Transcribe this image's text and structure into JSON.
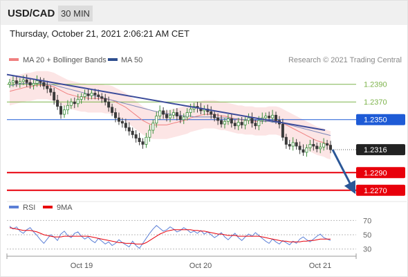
{
  "header": {
    "symbol": "USD/CAD",
    "timeframe": "30 MIN",
    "timestamp": "Thursday, October 21, 2021 2:06:21 AM CET"
  },
  "legend": {
    "items": [
      {
        "label": "MA 20 + Bollinger Bands",
        "color": "#f08080"
      },
      {
        "label": "MA 50",
        "color": "#2f4f8f"
      }
    ],
    "credit": "Research © 2021 Trading Central"
  },
  "colors": {
    "support_red": "#e8000b",
    "pivot_blue": "#1e5bd6",
    "resistance_green": "#7db34b",
    "trendline": "#3b4b9a",
    "arrow": "#2b5797",
    "bollinger_fill": "#fbdcdc",
    "candle_up": "#3a8f3a",
    "candle_down": "#3a3a3a",
    "rsi": "#5b7fd6",
    "rsi_ma": "#e8000b"
  },
  "chart_data": [
    {
      "type": "candlestick",
      "title": "USD/CAD",
      "x_labels": [
        "Oct 19",
        "Oct 20",
        "Oct 21"
      ],
      "ylim": [
        1.2262,
        1.2407
      ],
      "levels": [
        {
          "value": 1.239,
          "label": "1.2390",
          "kind": "resistance"
        },
        {
          "value": 1.237,
          "label": "1.2370",
          "kind": "resistance"
        },
        {
          "value": 1.235,
          "label": "1.2350",
          "kind": "pivot"
        },
        {
          "value": 1.2316,
          "label": "1.2316",
          "kind": "last"
        },
        {
          "value": 1.229,
          "label": "1.2290",
          "kind": "support"
        },
        {
          "value": 1.227,
          "label": "1.2270",
          "kind": "support"
        }
      ],
      "close": [
        1.2392,
        1.2394,
        1.2391,
        1.2393,
        1.2395,
        1.2392,
        1.2389,
        1.2391,
        1.2394,
        1.2392,
        1.2388,
        1.2385,
        1.2381,
        1.2372,
        1.2365,
        1.2356,
        1.2361,
        1.2366,
        1.237,
        1.2368,
        1.2373,
        1.2376,
        1.2379,
        1.2377,
        1.238,
        1.2378,
        1.2376,
        1.2374,
        1.237,
        1.2364,
        1.2358,
        1.2352,
        1.2348,
        1.2346,
        1.2341,
        1.2337,
        1.2333,
        1.2329,
        1.2325,
        1.2322,
        1.233,
        1.2338,
        1.2346,
        1.2354,
        1.236,
        1.2356,
        1.2352,
        1.2355,
        1.2358,
        1.2354,
        1.235,
        1.2353,
        1.2358,
        1.2362,
        1.2365,
        1.2363,
        1.236,
        1.2362,
        1.2359,
        1.2356,
        1.2352,
        1.2349,
        1.2345,
        1.2348,
        1.2351,
        1.2346,
        1.2343,
        1.2347,
        1.2344,
        1.2349,
        1.2352,
        1.2346,
        1.2343,
        1.2349,
        1.2352,
        1.2354,
        1.2352,
        1.2355,
        1.2349,
        1.2345,
        1.233,
        1.2322,
        1.232,
        1.2324,
        1.232,
        1.2316,
        1.2313,
        1.2318,
        1.2322,
        1.232,
        1.2317,
        1.2319,
        1.2323,
        1.2321,
        1.2316
      ],
      "ma20": [
        1.2382,
        1.2383,
        1.2384,
        1.2385,
        1.2386,
        1.2387,
        1.2387,
        1.2388,
        1.2389,
        1.2389,
        1.2389,
        1.2389,
        1.2388,
        1.2387,
        1.2385,
        1.2383,
        1.2381,
        1.2379,
        1.2378,
        1.2377,
        1.2376,
        1.2375,
        1.2375,
        1.2374,
        1.2374,
        1.2374,
        1.2374,
        1.2374,
        1.2373,
        1.2373,
        1.2372,
        1.237,
        1.2368,
        1.2366,
        1.2364,
        1.2361,
        1.2358,
        1.2355,
        1.2352,
        1.2349,
        1.2347,
        1.2345,
        1.2344,
        1.2344,
        1.2344,
        1.2344,
        1.2344,
        1.2345,
        1.2346,
        1.2347,
        1.2348,
        1.2349,
        1.235,
        1.2352,
        1.2353,
        1.2354,
        1.2355,
        1.2356,
        1.2356,
        1.2356,
        1.2356,
        1.2355,
        1.2354,
        1.2354,
        1.2353,
        1.2352,
        1.2351,
        1.235,
        1.235,
        1.2349,
        1.2349,
        1.2349,
        1.2348,
        1.2348,
        1.2348,
        1.2348,
        1.2349,
        1.2349,
        1.2349,
        1.2348,
        1.2346,
        1.2344,
        1.2342,
        1.234,
        1.2338,
        1.2336,
        1.2334,
        1.2332,
        1.233,
        1.2328,
        1.2326,
        1.2325,
        1.2324,
        1.2322,
        1.2321
      ],
      "ma50": [
        1.2388,
        1.2389,
        1.239,
        1.239,
        1.2391,
        1.2391,
        1.2391,
        1.2391,
        1.2391,
        1.2391,
        1.2391,
        1.239,
        1.239,
        1.2389,
        1.2388,
        1.2387,
        1.2386,
        1.2385,
        1.2384,
        1.2383,
        1.2382,
        1.2381,
        1.238,
        1.2379,
        1.2378,
        1.2377,
        1.2376,
        1.2375,
        1.2374,
        1.2373,
        1.2372,
        1.2371,
        1.237,
        1.2369,
        1.2368,
        1.2367,
        1.2366,
        1.2365,
        1.2364,
        1.2363,
        1.2362,
        1.2361,
        1.236,
        1.2359,
        1.2358,
        1.2357,
        1.2357,
        1.2356,
        1.2356,
        1.2355,
        1.2355,
        1.2354,
        1.2354,
        1.2354,
        1.2353,
        1.2353,
        1.2353,
        1.2353,
        1.2353,
        1.2353,
        1.2353,
        1.2352,
        1.2352,
        1.2352,
        1.2352,
        1.2351,
        1.2351,
        1.2351,
        1.235,
        1.235,
        1.235,
        1.2349,
        1.2349,
        1.2349,
        1.2348,
        1.2348,
        1.2348,
        1.2347,
        1.2347,
        1.2347,
        1.2346,
        1.2345,
        1.2344,
        1.2343,
        1.2342,
        1.2341,
        1.234,
        1.2339,
        1.2338,
        1.2337,
        1.2336,
        1.2335,
        1.2334,
        1.2333,
        1.2332
      ],
      "bollinger_width": 0.0016,
      "trendline": {
        "start": 1.2401,
        "end": 1.2338
      }
    },
    {
      "type": "line",
      "title": "RSI",
      "series": [
        {
          "name": "RSI",
          "values": [
            62,
            58,
            61,
            55,
            52,
            57,
            60,
            54,
            49,
            43,
            38,
            44,
            50,
            47,
            42,
            51,
            55,
            49,
            46,
            52,
            54,
            48,
            44,
            47,
            42,
            39,
            45,
            41,
            37,
            40,
            35,
            38,
            43,
            39,
            36,
            33,
            41,
            35,
            31,
            38,
            45,
            52,
            58,
            63,
            59,
            55,
            57,
            61,
            58,
            54,
            56,
            60,
            57,
            53,
            55,
            52,
            56,
            51,
            54,
            50,
            46,
            49,
            53,
            47,
            43,
            48,
            52,
            46,
            42,
            47,
            51,
            48,
            53,
            49,
            45,
            41,
            38,
            44,
            40,
            37,
            42,
            39,
            36,
            41,
            38,
            44,
            47,
            43,
            40,
            44,
            48,
            51,
            46,
            44,
            42
          ]
        },
        {
          "name": "9MA",
          "values": [
            60,
            59,
            58,
            57,
            56,
            56,
            56,
            55,
            54,
            52,
            50,
            49,
            48,
            47,
            47,
            47,
            48,
            48,
            48,
            48,
            48,
            48,
            48,
            48,
            47,
            46,
            45,
            44,
            43,
            42,
            41,
            40,
            39,
            39,
            38,
            38,
            38,
            37,
            37,
            37,
            39,
            42,
            45,
            48,
            51,
            53,
            55,
            56,
            57,
            57,
            57,
            57,
            57,
            57,
            56,
            56,
            55,
            55,
            54,
            53,
            52,
            51,
            51,
            50,
            49,
            49,
            49,
            48,
            48,
            48,
            48,
            48,
            48,
            48,
            47,
            46,
            45,
            44,
            43,
            42,
            41,
            41,
            40,
            40,
            40,
            40,
            41,
            41,
            42,
            42,
            43,
            44,
            44,
            44,
            44
          ]
        }
      ],
      "legend": [
        "RSI",
        "9MA"
      ],
      "ylim": [
        20,
        80
      ],
      "ticks": [
        70,
        50,
        30
      ]
    }
  ]
}
